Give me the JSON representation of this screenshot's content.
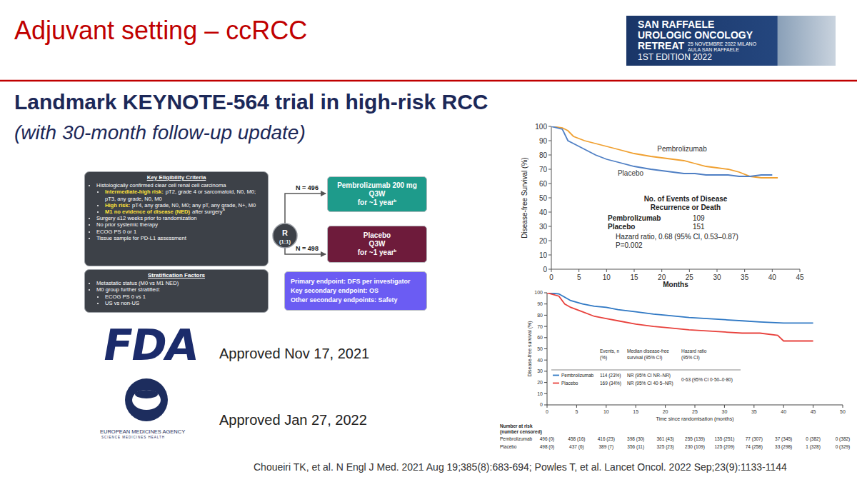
{
  "slide": {
    "title": "Adjuvant setting – ccRCC",
    "banner": {
      "lines": [
        "SAN RAFFAELE",
        "UROLOGIC ONCOLOGY",
        "RETREAT"
      ],
      "date": "25 NOVEMBRE 2022 MILANO",
      "venue": "AULA SAN RAFFAELE",
      "edition": "1ST EDITION 2022"
    },
    "heading": "Landmark KEYNOTE-564 trial in high-risk RCC",
    "subheading": "(with 30-month follow-up update)",
    "eligibility": {
      "title": "Key Eligibility Criteria",
      "items": [
        {
          "text": "Histologically confirmed clear cell renal cell carcinoma",
          "subitems": [
            {
              "label": "Intermediate-high risk:",
              "text": "pT2, grade 4 or sarcomatoid, N0, M0; pT3, any grade, N0, M0"
            },
            {
              "label": "High risk:",
              "text": "pT4, any grade, N0, M0; any pT, any grade, N+, M0"
            },
            {
              "label": "M1 no evidence of disease (NED)",
              "text": "after surgery",
              "sup": "a"
            }
          ]
        },
        {
          "text": "Surgery ≤12 weeks prior to randomization"
        },
        {
          "text": "No prior systemic therapy"
        },
        {
          "text": "ECOG PS 0 or 1"
        },
        {
          "text": "Tissue sample for PD-L1 assessment"
        }
      ]
    },
    "stratification": {
      "title": "Stratification Factors",
      "items": [
        {
          "text": "Metastatic status (M0 vs M1 NED)"
        },
        {
          "text": "M0 group further stratified:",
          "subitems": [
            {
              "text": "ECOG PS 0 vs 1"
            },
            {
              "text": "US vs non-US"
            }
          ]
        }
      ]
    },
    "randomization": {
      "label": "R",
      "ratio": "(1:1)"
    },
    "arms": [
      {
        "n": "N = 496",
        "lines": [
          "Pembrolizumab 200 mg",
          "Q3W",
          "for ~1 year"
        ],
        "sup": "b"
      },
      {
        "n": "N = 498",
        "lines": [
          "Placebo",
          "Q3W",
          "for ~1 year"
        ],
        "sup": "b"
      }
    ],
    "endpoints": [
      "Primary endpoint: DFS per investigator",
      "Key secondary endpoint: OS",
      "Other secondary endpoints: Safety"
    ],
    "approvals": [
      {
        "logo": "FDA",
        "text": "Approved Nov 17, 2021"
      },
      {
        "logo": "EUROPEAN MEDICINES AGENCY",
        "tagline": "SCIENCE MEDICINES HEALTH",
        "text": "Approved Jan 27, 2022"
      }
    ],
    "citation": "Choueiri TK, et al. N Engl J Med. 2021 Aug 19;385(8):683-694; Powles T, et al. Lancet Oncol. 2022 Sep;23(9):1133-1144"
  },
  "chart_data": [
    {
      "type": "line",
      "x_label": "Months",
      "y_label": "Disease-free Survival (%)",
      "xlim": [
        0,
        45
      ],
      "xticks": [
        0,
        5,
        10,
        15,
        20,
        25,
        30,
        35,
        40,
        45
      ],
      "ylim": [
        0,
        100
      ],
      "yticks": [
        0,
        10,
        20,
        30,
        40,
        50,
        60,
        70,
        80,
        90,
        100
      ],
      "grid": false,
      "line_style": "solid",
      "series": [
        {
          "name": "Pembrolizumab",
          "color": "#f0a030",
          "x": [
            0,
            2,
            3,
            4,
            6,
            8,
            10,
            12,
            15,
            18,
            20,
            22,
            24,
            26,
            28,
            30,
            32,
            34,
            36,
            38,
            41
          ],
          "values": [
            100,
            99,
            97,
            93,
            90,
            88,
            86,
            84,
            81,
            79,
            78,
            77,
            76,
            74,
            72,
            71,
            70,
            68,
            65,
            64,
            64
          ]
        },
        {
          "name": "Placebo",
          "color": "#4f7fc4",
          "x": [
            0,
            2,
            3,
            4,
            6,
            8,
            10,
            12,
            15,
            18,
            20,
            22,
            24,
            26,
            28,
            30,
            32,
            34,
            36,
            38,
            40
          ],
          "values": [
            100,
            98,
            90,
            88,
            84,
            80,
            77,
            75,
            72,
            70,
            69,
            68,
            67,
            67,
            66,
            66,
            66,
            65,
            65,
            66,
            66
          ]
        }
      ],
      "event_table": {
        "title": "No. of Events of Disease Recurrence or Death",
        "events": [
          109,
          151
        ],
        "hazard_ratio": "Hazard ratio, 0.68 (95% CI, 0.53–0.87)",
        "p_value": "P=0.002"
      }
    },
    {
      "type": "line",
      "x_label": "Time since randomisation (months)",
      "y_label": "Disease-free survival (%)",
      "xlim": [
        0,
        50
      ],
      "xticks": [
        0,
        5,
        10,
        15,
        20,
        25,
        30,
        35,
        40,
        45,
        50
      ],
      "ylim": [
        0,
        100
      ],
      "yticks": [
        0,
        10,
        20,
        30,
        40,
        50,
        60,
        70,
        80,
        90,
        100
      ],
      "grid": false,
      "line_style": "solid",
      "series": [
        {
          "name": "Pembrolizumab",
          "color": "#2f78c4",
          "x": [
            0,
            2,
            3,
            4,
            6,
            8,
            10,
            12,
            15,
            18,
            20,
            24,
            27,
            30,
            33,
            36,
            40,
            42,
            45
          ],
          "values": [
            100,
            99,
            96,
            93,
            90,
            88,
            87,
            85,
            83,
            81,
            80,
            78,
            77,
            76,
            75,
            74,
            73,
            73,
            73
          ]
        },
        {
          "name": "Placebo",
          "color": "#e8413c",
          "x": [
            0,
            2,
            3,
            4,
            6,
            8,
            10,
            12,
            15,
            18,
            20,
            24,
            27,
            30,
            33,
            36,
            39,
            40,
            42,
            45
          ],
          "values": [
            100,
            97,
            90,
            87,
            83,
            79,
            77,
            75,
            72,
            70,
            69,
            67,
            66,
            65,
            64,
            64,
            62,
            57,
            57,
            57
          ]
        }
      ],
      "table": {
        "headers": [
          "Events, n (%)",
          "Median disease-free survival (95% CI)",
          "Hazard ratio (95% CI)"
        ],
        "rows": [
          {
            "events": "114 (23%)",
            "median": "NR (95% CI NR–NR)"
          },
          {
            "events": "169 (34%)",
            "median": "NR (95% CI 40·5–NR)"
          }
        ],
        "hazard_ratio": "0·63 (95% CI 0·50–0·80)"
      },
      "number_at_risk": {
        "title": "Number at risk",
        "subtitle": "(number censored)",
        "rows": [
          [
            "496 (0)",
            "458 (16)",
            "416 (23)",
            "398 (30)",
            "361 (43)",
            "255 (139)",
            "135 (251)",
            "77 (307)",
            "37 (345)",
            "0 (382)",
            "0 (382)"
          ],
          [
            "498 (0)",
            "437 (6)",
            "389 (7)",
            "356 (11)",
            "325 (23)",
            "230 (109)",
            "125 (209)",
            "74 (258)",
            "33 (298)",
            "1 (328)",
            "0 (329)"
          ]
        ]
      }
    }
  ]
}
